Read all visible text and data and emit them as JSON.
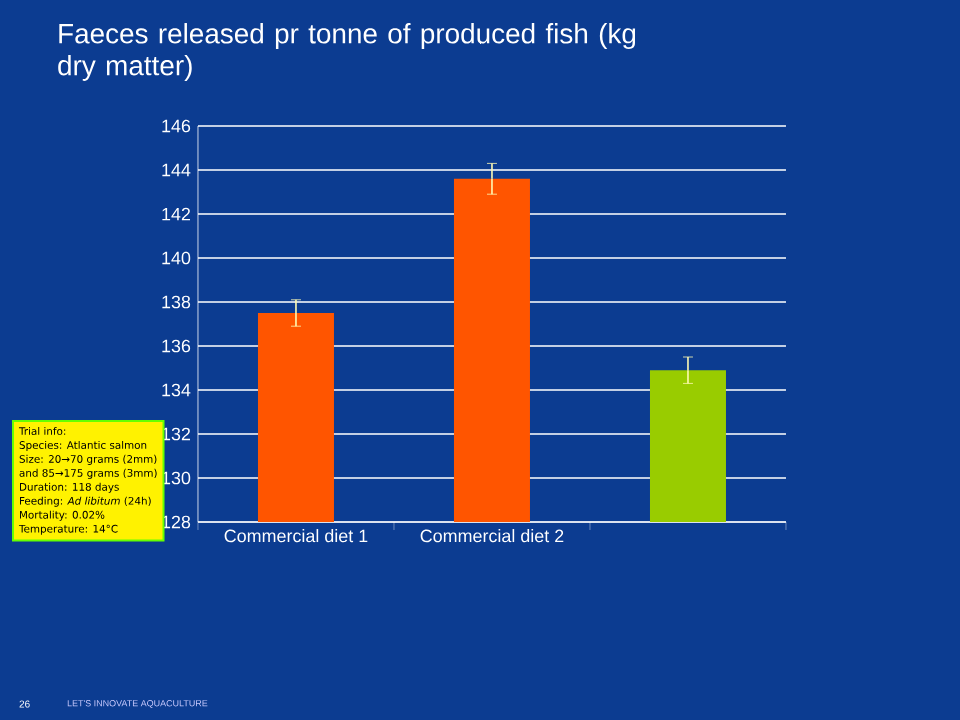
{
  "chart_data": {
    "type": "bar",
    "title": "Faeces released pr tonne of produced fish (kg dry matter)",
    "categories": [
      "Commercial diet 1",
      "Commercial diet 2",
      null
    ],
    "values": [
      137.5,
      143.6,
      134.9
    ],
    "errors": [
      0.6,
      0.7,
      0.6
    ],
    "colors": [
      "#ff5500",
      "#ff5500",
      "#99cc00"
    ],
    "ylim": [
      128,
      146
    ],
    "yticks": [
      128,
      130,
      132,
      134,
      136,
      138,
      140,
      142,
      144,
      146
    ],
    "grid": "y",
    "annotations": [
      "Trial info:",
      "Species: Atlantic salmon",
      "Size: 20→70 grams (2mm)",
      "and 85→175 grams (3mm)",
      "Duration: 118 days",
      "Feeding: *Ad libitum* (24h)",
      "Mortality: 0.02%",
      "Temperature: 14°C",
      "26",
      "LET'S INNOVATE AQUACULTURE"
    ]
  }
}
